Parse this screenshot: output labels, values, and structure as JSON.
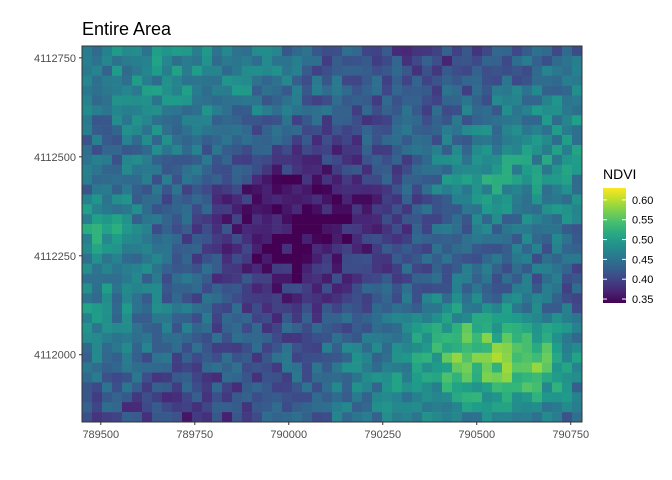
{
  "chart_data": {
    "type": "heatmap",
    "title": "Entire Area",
    "xlabel": "",
    "ylabel": "",
    "x_ticks": [
      "789500",
      "789750",
      "790000",
      "790250",
      "790500",
      "790750"
    ],
    "y_ticks": [
      "4112750",
      "4112500",
      "4112250",
      "4112000"
    ],
    "xlim": [
      789450,
      790780
    ],
    "ylim": [
      4111830,
      4112780
    ],
    "colorbar": {
      "title": "NDVI",
      "ticks": [
        "0.60",
        "0.55",
        "0.50",
        "0.45",
        "0.40",
        "0.35"
      ],
      "range": [
        0.34,
        0.63
      ],
      "palette": [
        "#440154",
        "#3b528b",
        "#21918c",
        "#5ec962",
        "#fde725"
      ],
      "position": "right"
    },
    "grid": {
      "cols": 50,
      "rows": 38,
      "value_range": [
        0.34,
        0.63
      ],
      "note": "dense per-cell NDVI raster; values increase toward bright patches in lower-right"
    }
  }
}
